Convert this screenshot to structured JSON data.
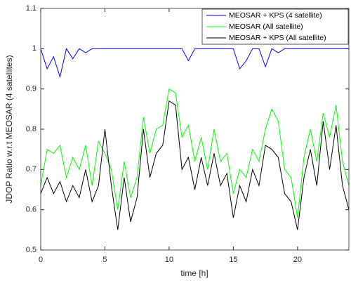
{
  "chart_data": {
    "type": "line",
    "xlabel": "time [h]",
    "ylabel": "JDOP Ratio w.r.t MEOSAR (4 satellites)",
    "x": [
      0,
      0.5,
      1,
      1.5,
      2,
      2.5,
      3,
      3.5,
      4,
      4.5,
      5,
      5.5,
      6,
      6.5,
      7,
      7.5,
      8,
      8.5,
      9,
      9.5,
      10,
      10.5,
      11,
      11.5,
      12,
      12.5,
      13,
      13.5,
      14,
      14.5,
      15,
      15.5,
      16,
      16.5,
      17,
      17.5,
      18,
      18.5,
      19,
      19.5,
      20,
      20.5,
      21,
      21.5,
      22,
      22.5,
      23,
      23.5,
      24
    ],
    "series": [
      {
        "name": "MEOSAR + KPS (4 satellite)",
        "color": "#0000ff",
        "values": [
          1,
          0.95,
          0.98,
          0.93,
          1,
          0.975,
          1,
          0.99,
          1,
          1,
          1,
          1,
          1,
          1,
          1,
          1,
          1,
          1,
          1,
          1,
          1,
          1,
          1,
          0.97,
          1,
          1,
          1,
          1,
          1,
          1,
          1,
          0.95,
          0.97,
          1,
          1,
          0.955,
          1,
          0.99,
          1,
          1,
          1,
          1,
          1,
          1,
          1,
          1,
          1,
          1,
          1
        ]
      },
      {
        "name": "MEOSAR (All satellite)",
        "color": "#00ff00",
        "values": [
          0.66,
          0.75,
          0.74,
          0.76,
          0.68,
          0.73,
          0.7,
          0.76,
          0.66,
          0.77,
          0.74,
          0.7,
          0.6,
          0.72,
          0.63,
          0.68,
          0.83,
          0.74,
          0.8,
          0.81,
          0.9,
          0.89,
          0.78,
          0.81,
          0.72,
          0.78,
          0.7,
          0.8,
          0.72,
          0.74,
          0.64,
          0.7,
          0.68,
          0.75,
          0.72,
          0.8,
          0.85,
          0.82,
          0.7,
          0.68,
          0.58,
          0.73,
          0.8,
          0.72,
          0.84,
          0.78,
          0.86,
          0.72,
          0.66
        ]
      },
      {
        "name": "MEOSAR + KPS (All satellite)",
        "color": "#000000",
        "values": [
          0.64,
          0.68,
          0.64,
          0.67,
          0.62,
          0.66,
          0.63,
          0.7,
          0.62,
          0.66,
          0.8,
          0.66,
          0.55,
          0.68,
          0.57,
          0.63,
          0.8,
          0.68,
          0.74,
          0.76,
          0.87,
          0.86,
          0.7,
          0.73,
          0.65,
          0.73,
          0.66,
          0.74,
          0.66,
          0.69,
          0.58,
          0.66,
          0.62,
          0.7,
          0.66,
          0.76,
          0.75,
          0.73,
          0.64,
          0.62,
          0.55,
          0.68,
          0.75,
          0.66,
          0.82,
          0.7,
          0.81,
          0.66,
          0.6
        ]
      }
    ],
    "xlim": [
      0,
      24
    ],
    "ylim": [
      0.5,
      1.1
    ],
    "xticks": [
      0,
      5,
      10,
      15,
      20
    ],
    "yticks": [
      0.5,
      0.6,
      0.7,
      0.8,
      0.9,
      1,
      1.1
    ],
    "legend": "upper right",
    "grid": false
  }
}
